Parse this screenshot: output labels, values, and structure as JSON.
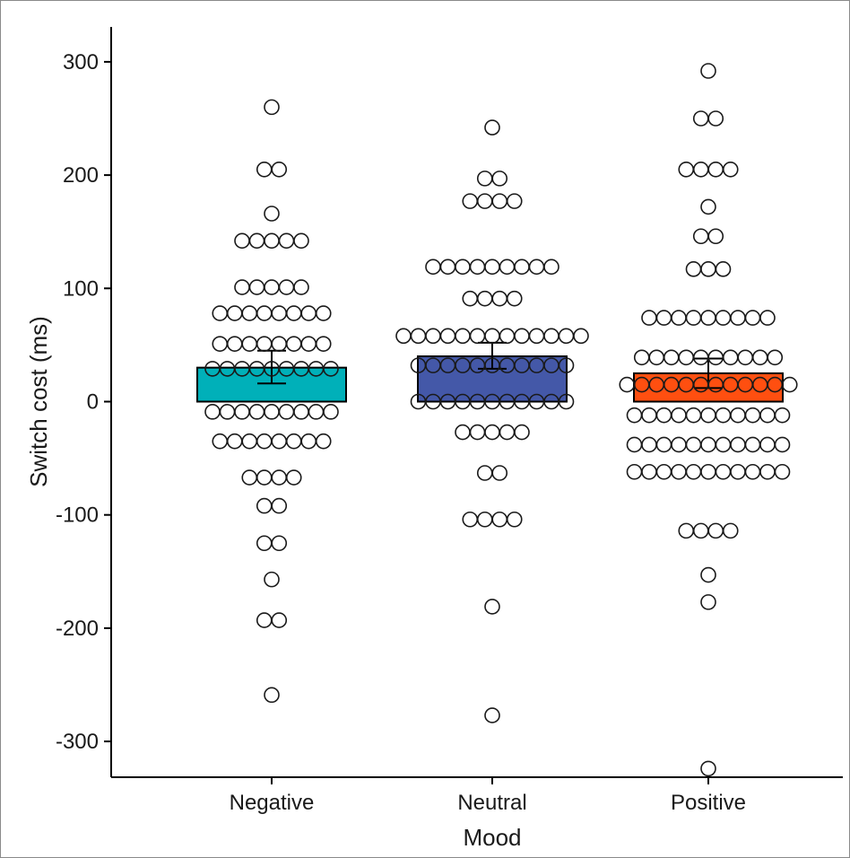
{
  "chart_data": {
    "type": "bar",
    "xlabel": "Mood",
    "ylabel": "Switch cost (ms)",
    "ylim": [
      -330,
      330
    ],
    "yticks": [
      300,
      200,
      100,
      0,
      -100,
      -200,
      -300
    ],
    "ytick_labels": [
      "300",
      "200",
      "100",
      "0",
      "-100",
      "-200",
      "-300"
    ],
    "categories": [
      "Negative",
      "Neutral",
      "Positive"
    ],
    "colors": [
      "#00b0b9",
      "#4458a8",
      "#ff4f10"
    ],
    "values": [
      30,
      40,
      25
    ],
    "error": [
      [
        16,
        45
      ],
      [
        29,
        52
      ],
      [
        12,
        38
      ]
    ],
    "points_style": "open circles, dot plot",
    "points": [
      [
        260,
        205,
        205,
        166,
        142,
        142,
        142,
        142,
        142,
        101,
        101,
        101,
        101,
        101,
        78,
        78,
        78,
        78,
        78,
        78,
        78,
        78,
        51,
        51,
        51,
        51,
        51,
        51,
        51,
        51,
        29,
        29,
        29,
        29,
        29,
        29,
        29,
        29,
        29,
        -9,
        -9,
        -9,
        -9,
        -9,
        -9,
        -9,
        -9,
        -9,
        -35,
        -35,
        -35,
        -35,
        -35,
        -35,
        -35,
        -35,
        -67,
        -67,
        -67,
        -67,
        -92,
        -92,
        -125,
        -125,
        -157,
        -193,
        -193,
        -259
      ],
      [
        242,
        197,
        197,
        177,
        177,
        177,
        177,
        119,
        119,
        119,
        119,
        119,
        119,
        119,
        119,
        119,
        91,
        91,
        91,
        91,
        58,
        58,
        58,
        58,
        58,
        58,
        58,
        58,
        58,
        58,
        58,
        58,
        58,
        32,
        32,
        32,
        32,
        32,
        32,
        32,
        32,
        32,
        32,
        32,
        0,
        0,
        0,
        0,
        0,
        0,
        0,
        0,
        0,
        0,
        0,
        -27,
        -27,
        -27,
        -27,
        -27,
        -63,
        -63,
        -104,
        -104,
        -104,
        -104,
        -181,
        -277
      ],
      [
        292,
        250,
        250,
        205,
        205,
        205,
        205,
        172,
        146,
        146,
        117,
        117,
        117,
        74,
        74,
        74,
        74,
        74,
        74,
        74,
        74,
        74,
        39,
        39,
        39,
        39,
        39,
        39,
        39,
        39,
        39,
        39,
        15,
        15,
        15,
        15,
        15,
        15,
        15,
        15,
        15,
        15,
        15,
        15,
        -12,
        -12,
        -12,
        -12,
        -12,
        -12,
        -12,
        -12,
        -12,
        -12,
        -12,
        -38,
        -38,
        -38,
        -38,
        -38,
        -38,
        -38,
        -38,
        -38,
        -38,
        -38,
        -62,
        -62,
        -62,
        -62,
        -62,
        -62,
        -62,
        -62,
        -62,
        -62,
        -62,
        -114,
        -114,
        -114,
        -114,
        -153,
        -177,
        -324
      ]
    ]
  }
}
